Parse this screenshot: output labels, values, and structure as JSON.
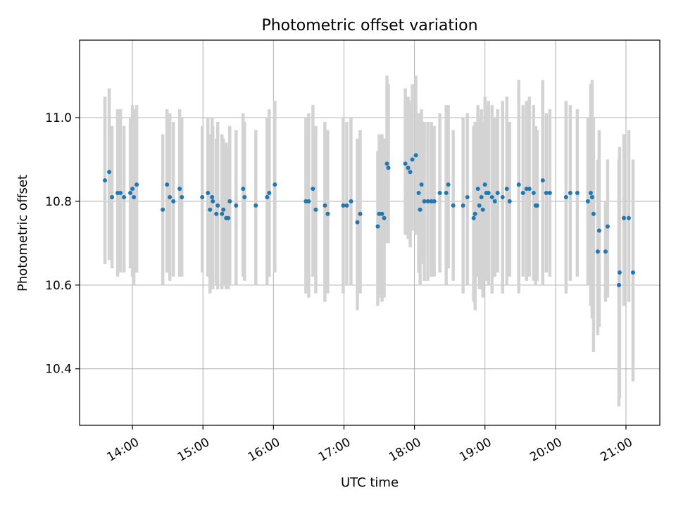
{
  "chart_data": {
    "type": "scatter",
    "title": "Photometric offset variation",
    "xlabel": "UTC time",
    "ylabel": "Photometric offset",
    "x_unit": "hours UTC",
    "xlim": [
      13.25,
      21.48
    ],
    "ylim": [
      10.265,
      11.185
    ],
    "x_ticks": [
      {
        "value": 14,
        "label": "14:00"
      },
      {
        "value": 15,
        "label": "15:00"
      },
      {
        "value": 16,
        "label": "16:00"
      },
      {
        "value": 17,
        "label": "17:00"
      },
      {
        "value": 18,
        "label": "18:00"
      },
      {
        "value": 19,
        "label": "19:00"
      },
      {
        "value": 20,
        "label": "20:00"
      },
      {
        "value": 21,
        "label": "21:00"
      }
    ],
    "y_ticks": [
      {
        "value": 10.4,
        "label": "10.4"
      },
      {
        "value": 10.6,
        "label": "10.6"
      },
      {
        "value": 10.8,
        "label": "10.8"
      },
      {
        "value": 11.0,
        "label": "11.0"
      }
    ],
    "grid": true,
    "colors": {
      "point": "#1f77b4",
      "errorbar": "#d3d3d3",
      "grid": "#b0b0b0"
    },
    "series": [
      {
        "name": "offset",
        "x": [
          13.61,
          13.67,
          13.71,
          13.79,
          13.83,
          13.88,
          13.97,
          14.0,
          14.02,
          14.06,
          14.43,
          14.49,
          14.53,
          14.58,
          14.67,
          14.7,
          14.99,
          15.07,
          15.1,
          15.13,
          15.14,
          15.19,
          15.21,
          15.27,
          15.29,
          15.33,
          15.36,
          15.38,
          15.47,
          15.57,
          15.59,
          15.75,
          15.91,
          15.94,
          16.02,
          16.46,
          16.5,
          16.56,
          16.6,
          16.73,
          16.77,
          16.99,
          17.04,
          17.1,
          17.19,
          17.23,
          17.48,
          17.5,
          17.54,
          17.57,
          17.61,
          17.63,
          17.87,
          17.91,
          17.94,
          17.97,
          18.02,
          18.06,
          18.08,
          18.1,
          18.14,
          18.19,
          18.24,
          18.28,
          18.36,
          18.45,
          18.48,
          18.55,
          18.69,
          18.75,
          18.84,
          18.86,
          18.9,
          18.92,
          18.95,
          18.97,
          19.0,
          19.02,
          19.05,
          19.1,
          19.14,
          19.18,
          19.25,
          19.31,
          19.35,
          19.48,
          19.54,
          19.59,
          19.63,
          19.69,
          19.72,
          19.74,
          19.82,
          19.87,
          19.92,
          20.15,
          20.21,
          20.31,
          20.46,
          20.5,
          20.52,
          20.54,
          20.6,
          20.62,
          20.71,
          20.74,
          20.9,
          20.91,
          20.97,
          21.04,
          21.1
        ],
        "y": [
          10.85,
          10.87,
          10.81,
          10.82,
          10.82,
          10.81,
          10.82,
          10.83,
          10.81,
          10.84,
          10.78,
          10.84,
          10.81,
          10.8,
          10.83,
          10.81,
          10.81,
          10.82,
          10.78,
          10.81,
          10.8,
          10.77,
          10.79,
          10.77,
          10.78,
          10.76,
          10.76,
          10.8,
          10.79,
          10.83,
          10.81,
          10.79,
          10.81,
          10.82,
          10.84,
          10.8,
          10.8,
          10.83,
          10.78,
          10.79,
          10.77,
          10.79,
          10.79,
          10.8,
          10.75,
          10.77,
          10.74,
          10.77,
          10.77,
          10.76,
          10.89,
          10.88,
          10.89,
          10.88,
          10.87,
          10.9,
          10.91,
          10.82,
          10.78,
          10.84,
          10.8,
          10.8,
          10.8,
          10.8,
          10.82,
          10.82,
          10.84,
          10.79,
          10.79,
          10.81,
          10.76,
          10.77,
          10.83,
          10.79,
          10.81,
          10.78,
          10.84,
          10.82,
          10.82,
          10.81,
          10.8,
          10.82,
          10.81,
          10.83,
          10.8,
          10.84,
          10.82,
          10.83,
          10.83,
          10.82,
          10.79,
          10.79,
          10.85,
          10.82,
          10.82,
          10.81,
          10.82,
          10.82,
          10.8,
          10.82,
          10.81,
          10.77,
          10.68,
          10.73,
          10.68,
          10.74,
          10.6,
          10.63,
          10.76,
          10.76,
          10.63
        ],
        "err_low": [
          10.65,
          10.66,
          10.64,
          10.62,
          10.63,
          10.63,
          10.64,
          10.62,
          10.6,
          10.63,
          10.6,
          10.63,
          10.61,
          10.62,
          10.62,
          10.62,
          10.63,
          10.62,
          10.58,
          10.61,
          10.59,
          10.6,
          10.59,
          10.59,
          10.6,
          10.59,
          10.59,
          10.6,
          10.6,
          10.62,
          10.61,
          10.6,
          10.6,
          10.62,
          10.63,
          10.58,
          10.57,
          10.62,
          10.58,
          10.56,
          10.58,
          10.58,
          10.6,
          10.6,
          10.54,
          10.58,
          10.55,
          10.57,
          10.56,
          10.57,
          10.7,
          10.7,
          10.72,
          10.71,
          10.69,
          10.73,
          10.72,
          10.63,
          10.6,
          10.65,
          10.61,
          10.61,
          10.62,
          10.62,
          10.63,
          10.6,
          10.64,
          10.61,
          10.58,
          10.6,
          10.56,
          10.54,
          10.62,
          10.59,
          10.59,
          10.57,
          10.63,
          10.61,
          10.6,
          10.58,
          10.62,
          10.63,
          10.58,
          10.6,
          10.62,
          10.58,
          10.62,
          10.61,
          10.62,
          10.61,
          10.6,
          10.61,
          10.6,
          10.63,
          10.62,
          10.58,
          10.61,
          10.62,
          10.6,
          10.55,
          10.52,
          10.44,
          10.48,
          10.5,
          10.56,
          10.57,
          10.31,
          10.33,
          10.55,
          10.56,
          10.37
        ],
        "err_high": [
          11.05,
          11.07,
          10.98,
          11.02,
          11.02,
          10.98,
          11.0,
          11.03,
          11.02,
          11.03,
          10.96,
          11.02,
          11.01,
          10.99,
          11.02,
          11.0,
          10.98,
          11.0,
          10.96,
          11.0,
          10.98,
          10.95,
          10.99,
          10.96,
          10.95,
          10.94,
          10.93,
          10.98,
          10.97,
          11.01,
          10.99,
          10.97,
          11.0,
          11.02,
          11.04,
          11.0,
          11.01,
          11.03,
          10.98,
          10.99,
          10.97,
          11.0,
          10.99,
          11.0,
          10.95,
          10.97,
          10.92,
          10.96,
          10.96,
          10.95,
          11.1,
          11.08,
          11.07,
          11.05,
          11.04,
          11.08,
          11.1,
          11.01,
          10.98,
          11.02,
          10.99,
          10.99,
          10.99,
          10.98,
          11.01,
          11.03,
          11.03,
          10.97,
          11.0,
          11.01,
          10.98,
          10.99,
          11.03,
          11.0,
          11.02,
          10.99,
          11.05,
          11.03,
          11.04,
          11.03,
          11.0,
          11.02,
          11.04,
          11.05,
          10.99,
          11.09,
          11.03,
          11.04,
          11.05,
          11.03,
          10.98,
          10.97,
          11.09,
          11.01,
          11.02,
          11.04,
          11.03,
          11.02,
          11.0,
          11.08,
          11.09,
          11.0,
          10.9,
          10.97,
          10.8,
          10.9,
          10.9,
          10.93,
          10.96,
          10.97,
          10.9
        ]
      }
    ]
  }
}
